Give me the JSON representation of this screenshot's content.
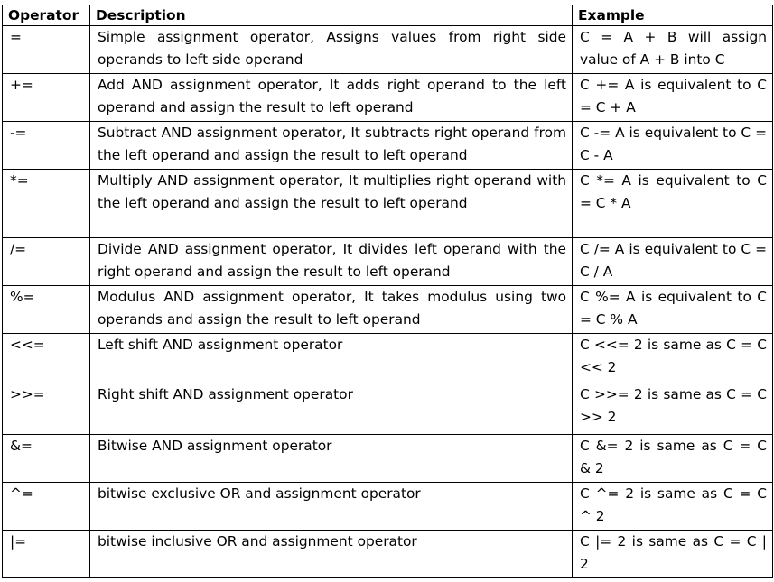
{
  "table": {
    "headers": {
      "operator": "Operator",
      "description": "Description",
      "example": "Example"
    },
    "rows": [
      {
        "operator": "=",
        "description": "Simple assignment operator, Assigns values from right side operands to left side operand",
        "example": "C = A + B will assign value of A + B into C"
      },
      {
        "operator": "+=",
        "description": "Add AND assignment operator, It adds right operand to the left operand and assign the result to left operand",
        "example": "C += A is equivalent to C = C + A"
      },
      {
        "operator": "-=",
        "description": "Subtract AND assignment operator, It subtracts right operand from the left operand and assign the result to left operand",
        "example": "C -= A is equivalent to C = C - A"
      },
      {
        "operator": "*=",
        "description": "Multiply AND assignment operator, It multiplies right operand with the left operand and assign the result to left operand",
        "example": "C *= A is equivalent to C = C * A"
      },
      {
        "operator": "/=",
        "description": "Divide AND assignment operator, It divides left operand with the right operand and assign the result to left operand",
        "example": "C /= A is equivalent to C = C / A"
      },
      {
        "operator": "%=",
        "description": "Modulus AND assignment operator, It takes modulus using two operands and assign the result to left operand",
        "example": "C %= A is equivalent to C = C % A"
      },
      {
        "operator": "<<=",
        "description": "Left shift AND assignment operator",
        "example": "C <<= 2 is same as C = C << 2"
      },
      {
        "operator": ">>=",
        "description": "Right shift AND assignment operator",
        "example": "C >>= 2 is same as C = C >> 2"
      },
      {
        "operator": "&=",
        "description": "Bitwise AND assignment operator",
        "example": "C &= 2 is same as C = C & 2"
      },
      {
        "operator": "^=",
        "description": "bitwise exclusive OR and assignment operator",
        "example": "C ^= 2 is same as C = C ^ 2"
      },
      {
        "operator": "|=",
        "description": "bitwise inclusive OR and assignment operator",
        "example": "C |= 2 is same as C = C | 2"
      }
    ]
  }
}
